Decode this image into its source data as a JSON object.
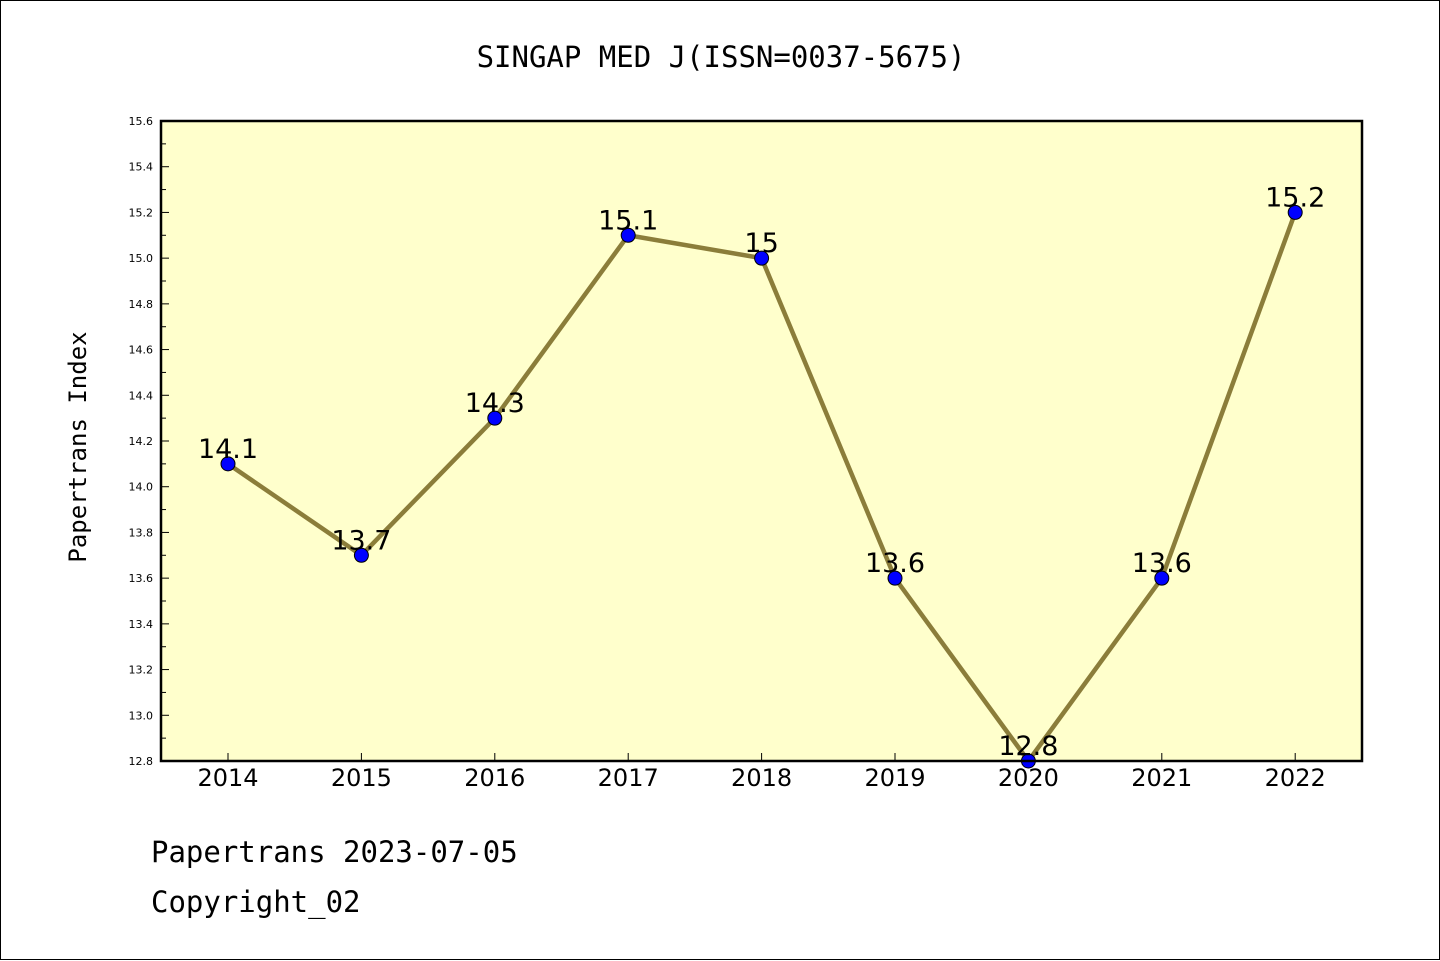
{
  "chart_data": {
    "type": "line",
    "title": "SINGAP MED J(ISSN=0037-5675)",
    "xlabel": "",
    "ylabel": "Papertrans Index",
    "categories": [
      "2014",
      "2015",
      "2016",
      "2017",
      "2018",
      "2019",
      "2020",
      "2021",
      "2022"
    ],
    "series": [
      {
        "values": [
          14.1,
          13.7,
          14.3,
          15.1,
          15.0,
          13.6,
          12.8,
          13.6,
          15.2
        ],
        "data_labels": [
          "14.1",
          "13.7",
          "14.3",
          "15.1",
          "15",
          "13.6",
          "12.8",
          "13.6",
          "15.2"
        ]
      }
    ],
    "ylim": [
      12.8,
      15.6
    ],
    "yticks": [
      "12.8",
      "13.0",
      "13.2",
      "13.4",
      "13.6",
      "13.8",
      "14.0",
      "14.2",
      "14.4",
      "14.6",
      "14.8",
      "15.0",
      "15.2",
      "15.4",
      "15.6"
    ],
    "grid": false,
    "colors": {
      "plot_background": "#ffffcc",
      "line": "#8b7d3a",
      "marker": "#0000ff"
    }
  },
  "footer": {
    "line1": "Papertrans 2023-07-05",
    "line2": "Copyright_02"
  }
}
